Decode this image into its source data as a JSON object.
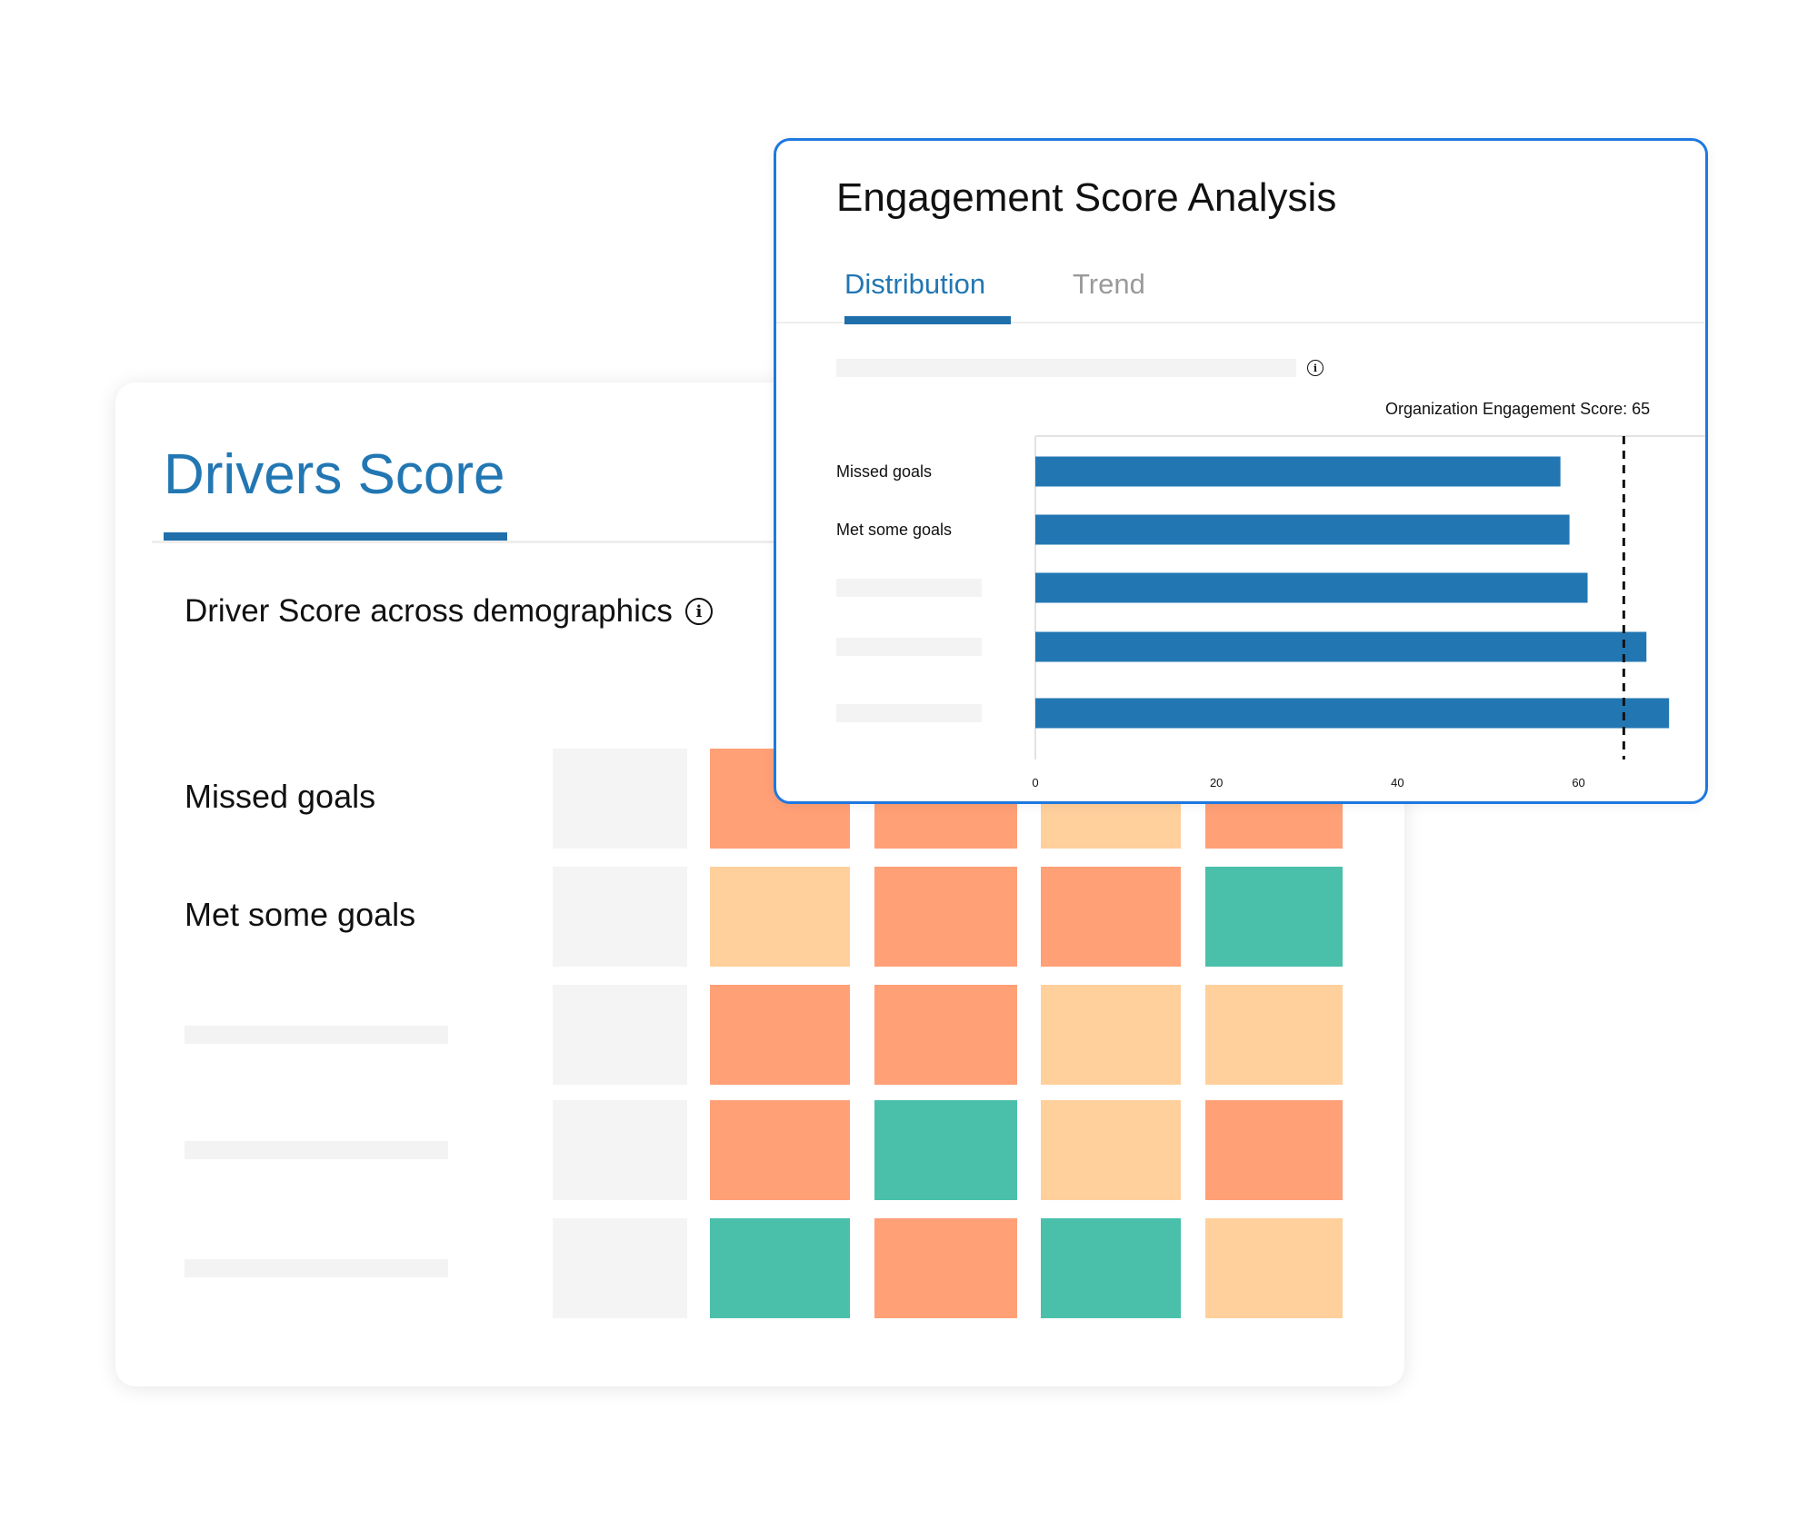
{
  "drivers": {
    "title": "Drivers Score",
    "heading": "Driver Score across demographics",
    "rows": [
      {
        "label": "Missed goals",
        "cells": [
          "#f4f4f4",
          "#ffa077",
          "#ffa077",
          "#ffd09c",
          "#ffa077"
        ]
      },
      {
        "label": "Met some goals",
        "cells": [
          "#f4f4f4",
          "#ffd09c",
          "#ffa077",
          "#ffa077",
          "#4ac0ab"
        ]
      },
      {
        "label": "",
        "cells": [
          "#f4f4f4",
          "#ffa077",
          "#ffa077",
          "#ffd09c",
          "#ffd09c"
        ]
      },
      {
        "label": "",
        "cells": [
          "#f4f4f4",
          "#ffa077",
          "#4ac0ab",
          "#ffd09c",
          "#ffa077"
        ]
      },
      {
        "label": "",
        "cells": [
          "#f4f4f4",
          "#4ac0ab",
          "#ffa077",
          "#4ac0ab",
          "#ffd09c"
        ]
      }
    ]
  },
  "engagement": {
    "title": "Engagement Score Analysis",
    "tabs": [
      {
        "label": "Distribution",
        "active": true
      },
      {
        "label": "Trend",
        "active": false
      }
    ],
    "org_score_label": "Organization Engagement Score: 65"
  },
  "chart_data": {
    "type": "bar",
    "orientation": "horizontal",
    "categories": [
      "Missed goals",
      "Met some goals",
      "",
      "",
      ""
    ],
    "values": [
      58,
      59,
      61,
      67.5,
      70
    ],
    "xticks": [
      0,
      20,
      40,
      60
    ],
    "xlim": [
      0,
      74
    ],
    "reference_line": {
      "value": 65,
      "style": "dashed"
    },
    "bar_color": "#2277b3",
    "title": "",
    "xlabel": "",
    "ylabel": ""
  },
  "colors": {
    "accent": "#2277b3",
    "card_border": "#1e78e0",
    "low": "#ffa077",
    "mid": "#ffd09c",
    "high": "#4ac0ab",
    "neutral": "#f4f4f4"
  },
  "icons": {
    "demo_info": "i",
    "chart_info": "i"
  }
}
